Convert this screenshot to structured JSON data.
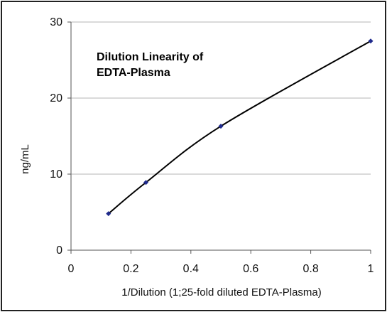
{
  "chart_data": {
    "type": "line",
    "title_lines": [
      "Dilution Linearity of",
      "EDTA-Plasma"
    ],
    "xlabel": "1/Dilution (1;25-fold diluted  EDTA-Plasma)",
    "ylabel": "ng/mL",
    "xlim": [
      0,
      1
    ],
    "ylim": [
      0,
      30
    ],
    "xticks": [
      0,
      0.2,
      0.4,
      0.6,
      0.8,
      1
    ],
    "xtick_labels": [
      "0",
      "0.2",
      "0.4",
      "0.6",
      "0.8",
      "1"
    ],
    "yticks": [
      0,
      10,
      20,
      30
    ],
    "ytick_labels": [
      "0",
      "10",
      "20",
      "30"
    ],
    "grid": "horizontal",
    "series": [
      {
        "x": [
          0.125,
          0.25,
          0.5,
          1
        ],
        "y": [
          4.8,
          8.9,
          16.3,
          27.5
        ],
        "line_color": "#000000",
        "marker_color": "#1f2a8c"
      }
    ]
  }
}
